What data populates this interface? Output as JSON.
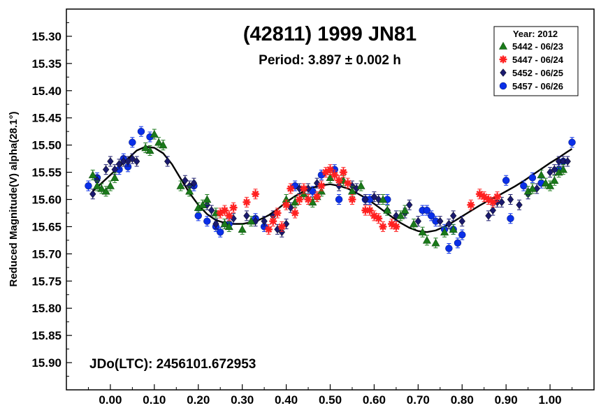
{
  "chart_data": {
    "type": "scatter",
    "title": "(42811) 1999 JN81",
    "subtitle": "Period: 3.897 ± 0.002 h",
    "ylabel": "Reduced Magnitude(V) alpha(28.1°)",
    "xlabel": "",
    "annotation": "JDo(LTC): 2456101.672953",
    "xlim": [
      -0.1,
      1.1
    ],
    "ylim": [
      15.95,
      15.25
    ],
    "y_inverted": true,
    "grid": false,
    "legend_position": "top-right",
    "legend_title": "Year: 2012",
    "x_ticks": [
      "0.00",
      "0.10",
      "0.20",
      "0.30",
      "0.40",
      "0.50",
      "0.60",
      "0.70",
      "0.80",
      "0.90",
      "1.00"
    ],
    "y_ticks": [
      "15.30",
      "15.35",
      "15.40",
      "15.45",
      "15.50",
      "15.55",
      "15.60",
      "15.65",
      "15.70",
      "15.75",
      "15.80",
      "15.85",
      "15.90"
    ],
    "series": [
      {
        "name": "5442 - 06/23",
        "marker": "triangle",
        "color": "#1a7a1a",
        "points": [
          [
            -0.04,
            15.555
          ],
          [
            -0.03,
            15.575
          ],
          [
            -0.02,
            15.58
          ],
          [
            -0.01,
            15.585
          ],
          [
            0.0,
            15.575
          ],
          [
            0.01,
            15.56
          ],
          [
            0.08,
            15.505
          ],
          [
            0.09,
            15.51
          ],
          [
            0.1,
            15.48
          ],
          [
            0.11,
            15.495
          ],
          [
            0.12,
            15.5
          ],
          [
            0.16,
            15.575
          ],
          [
            0.18,
            15.585
          ],
          [
            0.2,
            15.615
          ],
          [
            0.21,
            15.61
          ],
          [
            0.22,
            15.6
          ],
          [
            0.24,
            15.625
          ],
          [
            0.26,
            15.645
          ],
          [
            0.27,
            15.65
          ],
          [
            0.3,
            15.655
          ],
          [
            0.32,
            15.64
          ],
          [
            0.4,
            15.6
          ],
          [
            0.42,
            15.605
          ],
          [
            0.44,
            15.59
          ],
          [
            0.46,
            15.605
          ],
          [
            0.47,
            15.595
          ],
          [
            0.48,
            15.585
          ],
          [
            0.5,
            15.56
          ],
          [
            0.53,
            15.565
          ],
          [
            0.55,
            15.585
          ],
          [
            0.57,
            15.575
          ],
          [
            0.62,
            15.6
          ],
          [
            0.63,
            15.62
          ],
          [
            0.66,
            15.63
          ],
          [
            0.67,
            15.62
          ],
          [
            0.69,
            15.645
          ],
          [
            0.71,
            15.66
          ],
          [
            0.72,
            15.675
          ],
          [
            0.74,
            15.68
          ],
          [
            0.76,
            15.66
          ],
          [
            0.78,
            15.655
          ],
          [
            0.98,
            15.555
          ],
          [
            0.99,
            15.57
          ],
          [
            1.0,
            15.575
          ],
          [
            1.01,
            15.565
          ],
          [
            1.02,
            15.55
          ],
          [
            1.03,
            15.545
          ],
          [
            0.95,
            15.585
          ],
          [
            0.96,
            15.58
          ]
        ]
      },
      {
        "name": "5447 - 06/24",
        "marker": "star",
        "color": "#ff2020",
        "points": [
          [
            0.25,
            15.625
          ],
          [
            0.26,
            15.62
          ],
          [
            0.27,
            15.63
          ],
          [
            0.28,
            15.615
          ],
          [
            0.31,
            15.605
          ],
          [
            0.33,
            15.59
          ],
          [
            0.36,
            15.655
          ],
          [
            0.37,
            15.64
          ],
          [
            0.38,
            15.625
          ],
          [
            0.39,
            15.65
          ],
          [
            0.4,
            15.61
          ],
          [
            0.41,
            15.58
          ],
          [
            0.42,
            15.625
          ],
          [
            0.43,
            15.6
          ],
          [
            0.44,
            15.58
          ],
          [
            0.45,
            15.6
          ],
          [
            0.47,
            15.595
          ],
          [
            0.48,
            15.575
          ],
          [
            0.49,
            15.55
          ],
          [
            0.5,
            15.545
          ],
          [
            0.51,
            15.555
          ],
          [
            0.52,
            15.565
          ],
          [
            0.53,
            15.55
          ],
          [
            0.54,
            15.57
          ],
          [
            0.55,
            15.6
          ],
          [
            0.58,
            15.62
          ],
          [
            0.59,
            15.62
          ],
          [
            0.6,
            15.63
          ],
          [
            0.61,
            15.635
          ],
          [
            0.62,
            15.65
          ],
          [
            0.64,
            15.645
          ],
          [
            0.65,
            15.65
          ],
          [
            0.82,
            15.61
          ],
          [
            0.84,
            15.59
          ],
          [
            0.85,
            15.595
          ],
          [
            0.86,
            15.6
          ],
          [
            0.87,
            15.605
          ],
          [
            0.88,
            15.595
          ]
        ]
      },
      {
        "name": "5452 - 06/25",
        "marker": "diamond",
        "color": "#1a1a6e",
        "points": [
          [
            -0.04,
            15.59
          ],
          [
            -0.03,
            15.565
          ],
          [
            -0.01,
            15.545
          ],
          [
            0.0,
            15.53
          ],
          [
            0.01,
            15.545
          ],
          [
            0.02,
            15.535
          ],
          [
            0.03,
            15.53
          ],
          [
            0.04,
            15.53
          ],
          [
            0.05,
            15.525
          ],
          [
            0.06,
            15.53
          ],
          [
            0.13,
            15.53
          ],
          [
            0.17,
            15.565
          ],
          [
            0.18,
            15.575
          ],
          [
            0.19,
            15.57
          ],
          [
            0.22,
            15.61
          ],
          [
            0.23,
            15.62
          ],
          [
            0.24,
            15.645
          ],
          [
            0.26,
            15.645
          ],
          [
            0.28,
            15.635
          ],
          [
            0.31,
            15.63
          ],
          [
            0.33,
            15.64
          ],
          [
            0.35,
            15.64
          ],
          [
            0.37,
            15.63
          ],
          [
            0.38,
            15.655
          ],
          [
            0.39,
            15.66
          ],
          [
            0.4,
            15.645
          ],
          [
            0.41,
            15.615
          ],
          [
            0.43,
            15.58
          ],
          [
            0.45,
            15.58
          ],
          [
            0.47,
            15.57
          ],
          [
            0.52,
            15.575
          ],
          [
            0.55,
            15.575
          ],
          [
            0.56,
            15.58
          ],
          [
            0.58,
            15.6
          ],
          [
            0.6,
            15.595
          ],
          [
            0.61,
            15.6
          ],
          [
            0.63,
            15.62
          ],
          [
            0.65,
            15.63
          ],
          [
            0.67,
            15.625
          ],
          [
            0.68,
            15.61
          ],
          [
            0.7,
            15.64
          ],
          [
            0.75,
            15.64
          ],
          [
            0.77,
            15.645
          ],
          [
            0.78,
            15.63
          ],
          [
            0.8,
            15.64
          ],
          [
            0.86,
            15.63
          ],
          [
            0.87,
            15.62
          ],
          [
            0.88,
            15.605
          ],
          [
            0.89,
            15.605
          ],
          [
            0.91,
            15.6
          ],
          [
            0.93,
            15.61
          ],
          [
            0.95,
            15.59
          ],
          [
            0.97,
            15.58
          ],
          [
            1.0,
            15.55
          ],
          [
            1.01,
            15.545
          ],
          [
            1.02,
            15.53
          ],
          [
            1.03,
            15.53
          ],
          [
            1.04,
            15.53
          ]
        ]
      },
      {
        "name": "5457 - 06/26",
        "marker": "circle",
        "color": "#0a2fe8",
        "points": [
          [
            -0.05,
            15.575
          ],
          [
            -0.03,
            15.56
          ],
          [
            0.02,
            15.545
          ],
          [
            0.03,
            15.525
          ],
          [
            0.04,
            15.54
          ],
          [
            0.05,
            15.495
          ],
          [
            0.07,
            15.475
          ],
          [
            0.09,
            15.485
          ],
          [
            0.19,
            15.575
          ],
          [
            0.2,
            15.63
          ],
          [
            0.22,
            15.64
          ],
          [
            0.24,
            15.65
          ],
          [
            0.25,
            15.66
          ],
          [
            0.27,
            15.645
          ],
          [
            0.33,
            15.635
          ],
          [
            0.35,
            15.65
          ],
          [
            0.42,
            15.575
          ],
          [
            0.46,
            15.585
          ],
          [
            0.48,
            15.555
          ],
          [
            0.51,
            15.545
          ],
          [
            0.52,
            15.6
          ],
          [
            0.58,
            15.6
          ],
          [
            0.59,
            15.6
          ],
          [
            0.63,
            15.6
          ],
          [
            0.71,
            15.62
          ],
          [
            0.72,
            15.62
          ],
          [
            0.73,
            15.63
          ],
          [
            0.74,
            15.64
          ],
          [
            0.76,
            15.655
          ],
          [
            0.77,
            15.69
          ],
          [
            0.78,
            15.655
          ],
          [
            0.79,
            15.68
          ],
          [
            0.8,
            15.665
          ],
          [
            0.9,
            15.565
          ],
          [
            0.91,
            15.635
          ],
          [
            0.94,
            15.575
          ],
          [
            0.96,
            15.56
          ],
          [
            0.98,
            15.57
          ],
          [
            1.02,
            15.545
          ],
          [
            1.03,
            15.53
          ],
          [
            1.05,
            15.495
          ]
        ]
      }
    ],
    "fit_curve": {
      "name": "",
      "color": "#000000",
      "points": [
        [
          -0.04,
          15.585
        ],
        [
          -0.02,
          15.57
        ],
        [
          0.0,
          15.555
        ],
        [
          0.02,
          15.54
        ],
        [
          0.04,
          15.525
        ],
        [
          0.06,
          15.51
        ],
        [
          0.08,
          15.503
        ],
        [
          0.1,
          15.505
        ],
        [
          0.12,
          15.515
        ],
        [
          0.14,
          15.535
        ],
        [
          0.16,
          15.562
        ],
        [
          0.18,
          15.588
        ],
        [
          0.2,
          15.61
        ],
        [
          0.22,
          15.627
        ],
        [
          0.24,
          15.638
        ],
        [
          0.26,
          15.643
        ],
        [
          0.28,
          15.645
        ],
        [
          0.3,
          15.645
        ],
        [
          0.32,
          15.642
        ],
        [
          0.34,
          15.637
        ],
        [
          0.36,
          15.629
        ],
        [
          0.38,
          15.618
        ],
        [
          0.4,
          15.605
        ],
        [
          0.42,
          15.594
        ],
        [
          0.44,
          15.585
        ],
        [
          0.46,
          15.578
        ],
        [
          0.48,
          15.574
        ],
        [
          0.5,
          15.572
        ],
        [
          0.52,
          15.575
        ],
        [
          0.54,
          15.58
        ],
        [
          0.56,
          15.588
        ],
        [
          0.58,
          15.597
        ],
        [
          0.6,
          15.608
        ],
        [
          0.62,
          15.62
        ],
        [
          0.64,
          15.632
        ],
        [
          0.66,
          15.643
        ],
        [
          0.68,
          15.652
        ],
        [
          0.7,
          15.658
        ],
        [
          0.72,
          15.66
        ],
        [
          0.74,
          15.657
        ],
        [
          0.76,
          15.65
        ],
        [
          0.78,
          15.641
        ],
        [
          0.8,
          15.631
        ],
        [
          0.82,
          15.621
        ],
        [
          0.84,
          15.611
        ],
        [
          0.86,
          15.602
        ],
        [
          0.88,
          15.594
        ],
        [
          0.9,
          15.585
        ],
        [
          0.92,
          15.576
        ],
        [
          0.94,
          15.566
        ],
        [
          0.96,
          15.555
        ],
        [
          0.98,
          15.544
        ],
        [
          1.0,
          15.533
        ],
        [
          1.02,
          15.523
        ],
        [
          1.04,
          15.512
        ],
        [
          1.05,
          15.507
        ]
      ]
    }
  }
}
